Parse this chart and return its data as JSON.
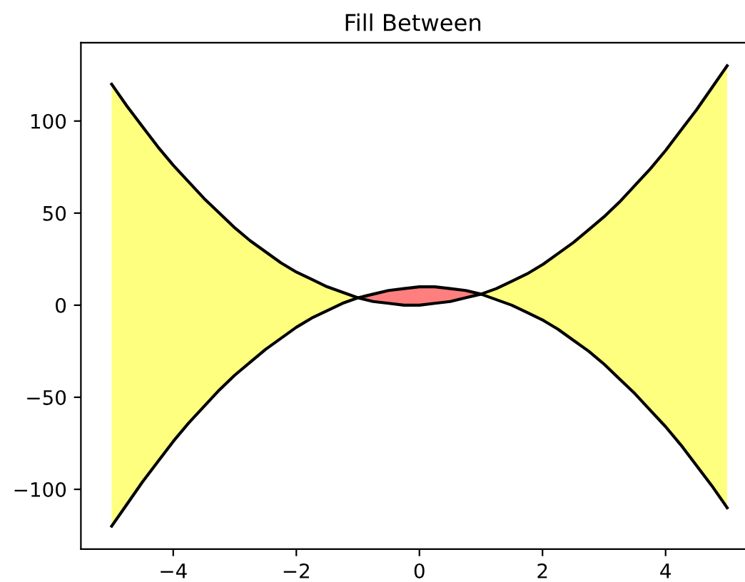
{
  "chart_data": {
    "type": "line",
    "title": "Fill Between",
    "xlim": [
      -5.5,
      5.29
    ],
    "ylim": [
      -132.5,
      142.5
    ],
    "xticks": [
      {
        "value": -4,
        "label": "−4"
      },
      {
        "value": -2,
        "label": "−2"
      },
      0,
      2,
      4
    ],
    "yticks": [
      {
        "value": -100,
        "label": "−100"
      },
      {
        "value": -50,
        "label": "−50"
      },
      0,
      50,
      100
    ],
    "series": [
      {
        "color": "#000000",
        "x": [
          -5,
          -4.75,
          -4.5,
          -4.25,
          -4,
          -3.75,
          -3.5,
          -3.25,
          -3,
          -2.75,
          -2.5,
          -2.25,
          -2,
          -1.75,
          -1.5,
          -1.25,
          -1,
          -0.75,
          -0.5,
          -0.25,
          0,
          0.25,
          0.5,
          0.75,
          1,
          1.25,
          1.5,
          1.75,
          2,
          2.25,
          2.5,
          2.75,
          3,
          3.25,
          3.5,
          3.75,
          4,
          4.25,
          4.5,
          4.75,
          5
        ],
        "values": [
          120,
          108,
          97,
          86,
          76,
          67,
          58,
          50,
          42,
          35,
          29,
          23,
          18,
          14,
          10,
          7,
          4,
          2,
          1,
          0,
          0,
          1,
          2,
          4,
          6,
          9,
          13,
          17,
          22,
          28,
          34,
          41,
          48,
          56,
          65,
          74,
          84,
          95,
          106,
          118,
          130
        ],
        "lower": [
          -120,
          -108,
          -96,
          -85,
          -74,
          -64,
          -55,
          -46,
          -38,
          -31,
          -24,
          -18,
          -12,
          -7,
          -3,
          1,
          4,
          null,
          null,
          null,
          null,
          null,
          null,
          null,
          6,
          3,
          0,
          -4,
          -8,
          -13,
          -19,
          -25,
          -32,
          -40,
          -48,
          -57,
          -66,
          -76,
          -87,
          -98,
          -110
        ],
        "upper": [
          120,
          108,
          97,
          86,
          76,
          67,
          58,
          50,
          42,
          35,
          29,
          23,
          18,
          14,
          10,
          7,
          4,
          null,
          null,
          null,
          null,
          null,
          null,
          null,
          6,
          9,
          13,
          17,
          22,
          28,
          34,
          41,
          48,
          56,
          65,
          74,
          84,
          95,
          106,
          118,
          130
        ],
        "colors": [
          "#ffff7f",
          "#ffff7f",
          "#ffff7f",
          "#ffff7f",
          "#ffff7f",
          "#ffff7f",
          "#ffff7f",
          "#ffff7f",
          "#ffff7f",
          "#ffff7f",
          "#ffff7f",
          "#ffff7f",
          "#ffff7f",
          "#ffff7f",
          "#ffff7f",
          "#ffff7f",
          "#ffff7f",
          null,
          null,
          null,
          null,
          null,
          null,
          null,
          "#ffff7f",
          "#ffff7f",
          "#ffff7f",
          "#ffff7f",
          "#ffff7f",
          "#ffff7f",
          "#ffff7f",
          "#ffff7f",
          "#ffff7f",
          "#ffff7f",
          "#ffff7f",
          "#ffff7f",
          "#ffff7f",
          "#ffff7f",
          "#ffff7f",
          "#ffff7f",
          "#ffff7f"
        ]
      },
      {
        "color": "#000000",
        "x": [
          -5,
          -4.75,
          -4.5,
          -4.25,
          -4,
          -3.75,
          -3.5,
          -3.25,
          -3,
          -2.75,
          -2.5,
          -2.25,
          -2,
          -1.75,
          -1.5,
          -1.25,
          -1,
          -0.75,
          -0.5,
          -0.25,
          0,
          0.25,
          0.5,
          0.75,
          1,
          1.25,
          1.5,
          1.75,
          2,
          2.25,
          2.5,
          2.75,
          3,
          3.25,
          3.5,
          3.75,
          4,
          4.25,
          4.5,
          4.75,
          5
        ],
        "values": [
          -120,
          -108,
          -96,
          -85,
          -74,
          -64,
          -55,
          -46,
          -38,
          -31,
          -24,
          -18,
          -12,
          -7,
          -3,
          1,
          4,
          6,
          8,
          9,
          10,
          10,
          9,
          8,
          6,
          3,
          0,
          -4,
          -8,
          -13,
          -19,
          -25,
          -32,
          -40,
          -48,
          -57,
          -66,
          -76,
          -87,
          -98,
          -110
        ],
        "lower": [
          null,
          null,
          null,
          null,
          null,
          null,
          null,
          null,
          null,
          null,
          null,
          null,
          null,
          null,
          null,
          null,
          4,
          2,
          1,
          0,
          0,
          1,
          2,
          4,
          6,
          null,
          null,
          null,
          null,
          null,
          null,
          null,
          null,
          null,
          null,
          null,
          null,
          null,
          null,
          null,
          null
        ],
        "upper": [
          null,
          null,
          null,
          null,
          null,
          null,
          null,
          null,
          null,
          null,
          null,
          null,
          null,
          null,
          null,
          null,
          4,
          6,
          8,
          9,
          10,
          10,
          9,
          8,
          6,
          null,
          null,
          null,
          null,
          null,
          null,
          null,
          null,
          null,
          null,
          null,
          null,
          null,
          null,
          null,
          null
        ],
        "colors": [
          null,
          null,
          null,
          null,
          null,
          null,
          null,
          null,
          null,
          null,
          null,
          null,
          null,
          null,
          null,
          null,
          "#ff7f7f",
          "#ff7f7f",
          "#ff7f7f",
          "#ff7f7f",
          "#ff7f7f",
          "#ff7f7f",
          "#ff7f7f",
          "#ff7f7f",
          "#ff7f7f",
          null,
          null,
          null,
          null,
          null,
          null,
          null,
          null,
          null,
          null,
          null,
          null,
          null,
          null,
          null,
          null
        ]
      }
    ]
  }
}
